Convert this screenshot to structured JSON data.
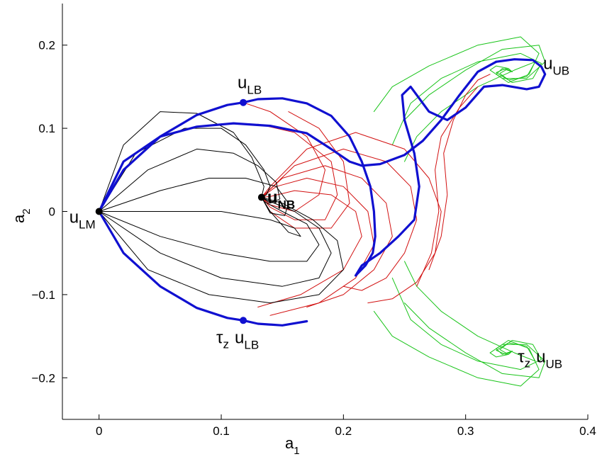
{
  "chart_data": {
    "type": "line",
    "xlabel": {
      "main": "a",
      "sub": "1"
    },
    "ylabel": {
      "main": "a",
      "sub": "2"
    },
    "xlim": [
      -0.03,
      0.4
    ],
    "ylim": [
      -0.25,
      0.25
    ],
    "xticks": [
      0,
      0.1,
      0.2,
      0.3,
      0.4
    ],
    "xtick_labels": [
      "0",
      "0.1",
      "0.2",
      "0.3",
      "0.4"
    ],
    "yticks": [
      -0.2,
      -0.1,
      0,
      0.1,
      0.2
    ],
    "ytick_labels": [
      "−0.2",
      "−0.1",
      "0",
      "0.1",
      "0.2"
    ],
    "grid": false,
    "colors": {
      "boundary": "#1010d0",
      "black": "#000000",
      "red": "#d21010",
      "green": "#19c419"
    },
    "points": [
      {
        "id": "u_LM",
        "x": 0,
        "y": 0,
        "label_main": "u",
        "label_sub": "LM",
        "prefix": "",
        "color": "#000000",
        "marker": true
      },
      {
        "id": "u_LB",
        "x": 0.118,
        "y": 0.131,
        "label_main": "u",
        "label_sub": "LB",
        "prefix": "",
        "color": "#1010d0",
        "marker": true
      },
      {
        "id": "tz_u_LB",
        "x": 0.118,
        "y": -0.131,
        "label_main": "u",
        "label_sub": "LB",
        "prefix": "τz",
        "color": "#1010d0",
        "marker": true
      },
      {
        "id": "u_NB",
        "x": 0.133,
        "y": 0.017,
        "label_main": "u",
        "label_sub": "NB",
        "prefix": "",
        "color": "#000000",
        "marker": true
      },
      {
        "id": "u_UB",
        "x": 0.338,
        "y": 0.168,
        "label_main": "u",
        "label_sub": "UB",
        "prefix": "",
        "color": "#19c419",
        "marker": false
      },
      {
        "id": "tz_u_UB",
        "x": 0.338,
        "y": -0.168,
        "label_main": "u",
        "label_sub": "UB",
        "prefix": "τz",
        "color": "#19c419",
        "marker": false
      }
    ],
    "series": [
      {
        "style": "blue-boundary",
        "color": "#1010d0",
        "x": [
          0,
          0.02,
          0.05,
          0.08,
          0.105,
          0.118,
          0.13,
          0.15,
          0.17,
          0.19,
          0.205,
          0.215,
          0.222,
          0.225,
          0.226,
          0.224,
          0.218,
          0.21
        ],
        "y": [
          0,
          0.05,
          0.09,
          0.116,
          0.128,
          0.131,
          0.135,
          0.136,
          0.13,
          0.115,
          0.09,
          0.06,
          0.03,
          0.0,
          -0.03,
          -0.05,
          -0.065,
          -0.077
        ]
      },
      {
        "style": "blue-boundary",
        "color": "#1010d0",
        "x": [
          0,
          0.02,
          0.05,
          0.08,
          0.105,
          0.118,
          0.13,
          0.15,
          0.17
        ],
        "y": [
          0,
          -0.05,
          -0.09,
          -0.116,
          -0.128,
          -0.131,
          -0.135,
          -0.137,
          -0.132
        ]
      },
      {
        "style": "blue-boundary",
        "color": "#1010d0",
        "x": [
          0,
          0.02,
          0.05,
          0.08,
          0.11,
          0.14,
          0.17,
          0.19,
          0.205,
          0.215,
          0.23,
          0.25,
          0.265,
          0.28,
          0.295,
          0.31,
          0.325
        ],
        "y": [
          0,
          0.06,
          0.09,
          0.102,
          0.106,
          0.103,
          0.094,
          0.075,
          0.06,
          0.055,
          0.057,
          0.068,
          0.085,
          0.11,
          0.14,
          0.168,
          0.18
        ]
      },
      {
        "style": "blue-boundary",
        "color": "#1010d0",
        "x": [
          0.325,
          0.34,
          0.355,
          0.362,
          0.365,
          0.36,
          0.35,
          0.33,
          0.315,
          0.3,
          0.285,
          0.27,
          0.255,
          0.248,
          0.25,
          0.258,
          0.262,
          0.258,
          0.245,
          0.23,
          0.215,
          0.21
        ],
        "y": [
          0.18,
          0.183,
          0.182,
          0.174,
          0.165,
          0.15,
          0.147,
          0.152,
          0.15,
          0.125,
          0.11,
          0.12,
          0.15,
          0.14,
          0.11,
          0.07,
          0.03,
          -0.01,
          -0.03,
          -0.05,
          -0.065,
          -0.077
        ]
      },
      {
        "style": "black-traj",
        "color": "#000000",
        "x": [
          0,
          0.03,
          0.07,
          0.1,
          0.12,
          0.135,
          0.14,
          0.137,
          0.133
        ],
        "y": [
          0,
          0.07,
          0.1,
          0.1,
          0.08,
          0.05,
          0.03,
          0.02,
          0.017
        ]
      },
      {
        "style": "black-traj",
        "color": "#000000",
        "x": [
          0,
          0.04,
          0.08,
          0.11,
          0.13,
          0.145,
          0.148,
          0.14,
          0.133
        ],
        "y": [
          0,
          0.05,
          0.075,
          0.07,
          0.055,
          0.035,
          0.015,
          0.01,
          0.017
        ]
      },
      {
        "style": "black-traj",
        "color": "#000000",
        "x": [
          0,
          0.05,
          0.09,
          0.12,
          0.145,
          0.155,
          0.152,
          0.14,
          0.133
        ],
        "y": [
          0,
          0.025,
          0.04,
          0.04,
          0.03,
          0.01,
          -0.005,
          -0.002,
          0.017
        ]
      },
      {
        "style": "black-traj",
        "color": "#000000",
        "x": [
          0,
          0.05,
          0.1,
          0.14,
          0.16,
          0.165,
          0.155,
          0.14,
          0.133
        ],
        "y": [
          0,
          0.0,
          0.0,
          -0.01,
          -0.02,
          -0.03,
          -0.025,
          0.0,
          0.017
        ]
      },
      {
        "style": "black-traj",
        "color": "#000000",
        "x": [
          0,
          0.05,
          0.1,
          0.14,
          0.17,
          0.18,
          0.17,
          0.15,
          0.135,
          0.133
        ],
        "y": [
          0,
          -0.03,
          -0.05,
          -0.06,
          -0.06,
          -0.04,
          -0.015,
          0.0,
          0.012,
          0.017
        ]
      },
      {
        "style": "black-traj",
        "color": "#000000",
        "x": [
          0,
          0.05,
          0.1,
          0.15,
          0.18,
          0.19,
          0.18,
          0.16,
          0.14,
          0.133
        ],
        "y": [
          0,
          -0.05,
          -0.08,
          -0.09,
          -0.08,
          -0.05,
          -0.02,
          0.0,
          0.012,
          0.017
        ]
      },
      {
        "style": "black-traj",
        "color": "#000000",
        "x": [
          0,
          0.04,
          0.09,
          0.14,
          0.18,
          0.2,
          0.195,
          0.175,
          0.15,
          0.133
        ],
        "y": [
          0,
          -0.07,
          -0.1,
          -0.11,
          -0.1,
          -0.07,
          -0.035,
          -0.01,
          0.01,
          0.017
        ]
      },
      {
        "style": "black-traj",
        "color": "#000000",
        "x": [
          0,
          0.02,
          0.05,
          0.08,
          0.11,
          0.125,
          0.135,
          0.133
        ],
        "y": [
          0,
          0.08,
          0.12,
          0.118,
          0.095,
          0.065,
          0.03,
          0.017
        ]
      },
      {
        "style": "red-traj",
        "color": "#d21010",
        "x": [
          0.118,
          0.14,
          0.17,
          0.185,
          0.18,
          0.16,
          0.14,
          0.133
        ],
        "y": [
          0.131,
          0.12,
          0.09,
          0.05,
          0.02,
          0.0,
          0.008,
          0.017
        ]
      },
      {
        "style": "red-traj",
        "color": "#d21010",
        "x": [
          0.155,
          0.18,
          0.2,
          0.205,
          0.19,
          0.16,
          0.14,
          0.133
        ],
        "y": [
          0.12,
          0.1,
          0.06,
          0.01,
          -0.02,
          -0.02,
          0.0,
          0.017
        ]
      },
      {
        "style": "red-traj",
        "color": "#d21010",
        "x": [
          0.13,
          0.16,
          0.19,
          0.195,
          0.185,
          0.16,
          0.14,
          0.133
        ],
        "y": [
          0.105,
          0.095,
          0.06,
          0.02,
          -0.01,
          -0.01,
          0.005,
          0.017
        ]
      },
      {
        "style": "red-traj",
        "color": "#d21010",
        "x": [
          0.13,
          0.165,
          0.2,
          0.215,
          0.21,
          0.19,
          0.16,
          0.14,
          0.133
        ],
        "y": [
          -0.115,
          -0.1,
          -0.07,
          -0.03,
          0.0,
          0.02,
          0.025,
          0.018,
          0.017
        ]
      },
      {
        "style": "red-traj",
        "color": "#d21010",
        "x": [
          0.14,
          0.18,
          0.21,
          0.225,
          0.22,
          0.2,
          0.17,
          0.145,
          0.133
        ],
        "y": [
          -0.125,
          -0.11,
          -0.08,
          -0.04,
          0.0,
          0.03,
          0.04,
          0.03,
          0.017
        ]
      },
      {
        "style": "red-traj",
        "color": "#d21010",
        "x": [
          0.17,
          0.2,
          0.225,
          0.24,
          0.235,
          0.215,
          0.185,
          0.15,
          0.133
        ],
        "y": [
          -0.115,
          -0.1,
          -0.07,
          -0.03,
          0.01,
          0.04,
          0.055,
          0.04,
          0.017
        ]
      },
      {
        "style": "red-traj",
        "color": "#d21010",
        "x": [
          0.2,
          0.215,
          0.235,
          0.25,
          0.26,
          0.255,
          0.235,
          0.2,
          0.16,
          0.133
        ],
        "y": [
          -0.09,
          -0.095,
          -0.08,
          -0.05,
          -0.01,
          0.03,
          0.06,
          0.075,
          0.055,
          0.017
        ]
      },
      {
        "style": "red-traj",
        "color": "#d21010",
        "x": [
          0.22,
          0.24,
          0.26,
          0.275,
          0.28,
          0.27,
          0.25,
          0.21,
          0.17,
          0.14,
          0.133
        ],
        "y": [
          -0.11,
          -0.105,
          -0.085,
          -0.05,
          0.0,
          0.04,
          0.075,
          0.095,
          0.075,
          0.03,
          0.017
        ]
      },
      {
        "style": "red-traj",
        "color": "#d21010",
        "x": [
          0.27,
          0.28,
          0.285,
          0.282,
          0.29,
          0.3,
          0.31,
          0.32
        ],
        "y": [
          -0.07,
          -0.03,
          0.02,
          0.07,
          0.11,
          0.14,
          0.158,
          0.165
        ]
      },
      {
        "style": "red-traj",
        "color": "#d21010",
        "x": [
          0.26,
          0.272,
          0.278,
          0.275,
          0.28,
          0.295,
          0.31
        ],
        "y": [
          -0.09,
          -0.05,
          0.0,
          0.05,
          0.09,
          0.125,
          0.15
        ]
      },
      {
        "style": "green-traj",
        "color": "#19c419",
        "x": [
          0.25,
          0.27,
          0.3,
          0.33,
          0.36,
          0.365,
          0.35,
          0.33,
          0.32,
          0.325,
          0.335,
          0.338
        ],
        "y": [
          0.11,
          0.14,
          0.17,
          0.195,
          0.2,
          0.18,
          0.16,
          0.16,
          0.17,
          0.175,
          0.172,
          0.168
        ]
      },
      {
        "style": "green-traj",
        "color": "#19c419",
        "x": [
          0.225,
          0.24,
          0.27,
          0.31,
          0.345,
          0.36,
          0.352,
          0.335,
          0.325,
          0.33,
          0.338
        ],
        "y": [
          0.12,
          0.15,
          0.175,
          0.2,
          0.21,
          0.19,
          0.165,
          0.155,
          0.165,
          0.172,
          0.168
        ]
      },
      {
        "style": "green-traj",
        "color": "#19c419",
        "x": [
          0.25,
          0.26,
          0.28,
          0.31,
          0.34,
          0.357,
          0.35,
          0.335,
          0.325,
          0.333,
          0.338
        ],
        "y": [
          0.06,
          0.09,
          0.12,
          0.15,
          0.17,
          0.18,
          0.162,
          0.158,
          0.167,
          0.172,
          0.168
        ]
      },
      {
        "style": "green-traj",
        "color": "#19c419",
        "x": [
          0.24,
          0.255,
          0.28,
          0.31,
          0.345,
          0.362,
          0.355,
          0.338,
          0.328,
          0.334,
          0.338
        ],
        "y": [
          0.08,
          0.13,
          0.16,
          0.18,
          0.19,
          0.178,
          0.16,
          0.155,
          0.166,
          0.171,
          0.168
        ]
      },
      {
        "style": "green-traj",
        "color": "#19c419",
        "x": [
          0.25,
          0.27,
          0.3,
          0.33,
          0.36,
          0.365,
          0.35,
          0.33,
          0.32,
          0.325,
          0.335,
          0.338
        ],
        "y": [
          -0.11,
          -0.14,
          -0.17,
          -0.195,
          -0.2,
          -0.18,
          -0.16,
          -0.16,
          -0.17,
          -0.175,
          -0.172,
          -0.168
        ]
      },
      {
        "style": "green-traj",
        "color": "#19c419",
        "x": [
          0.225,
          0.24,
          0.27,
          0.31,
          0.345,
          0.36,
          0.352,
          0.335,
          0.325,
          0.33,
          0.338
        ],
        "y": [
          -0.12,
          -0.15,
          -0.175,
          -0.2,
          -0.21,
          -0.19,
          -0.165,
          -0.155,
          -0.165,
          -0.172,
          -0.168
        ]
      },
      {
        "style": "green-traj",
        "color": "#19c419",
        "x": [
          0.25,
          0.26,
          0.28,
          0.31,
          0.34,
          0.357,
          0.35,
          0.335,
          0.325,
          0.333,
          0.338
        ],
        "y": [
          -0.06,
          -0.09,
          -0.12,
          -0.15,
          -0.17,
          -0.18,
          -0.162,
          -0.158,
          -0.167,
          -0.172,
          -0.168
        ]
      },
      {
        "style": "green-traj",
        "color": "#19c419",
        "x": [
          0.24,
          0.255,
          0.28,
          0.31,
          0.345,
          0.362,
          0.355,
          0.338,
          0.328,
          0.334,
          0.338
        ],
        "y": [
          -0.08,
          -0.13,
          -0.16,
          -0.18,
          -0.19,
          -0.178,
          -0.16,
          -0.155,
          -0.166,
          -0.171,
          -0.168
        ]
      }
    ]
  }
}
